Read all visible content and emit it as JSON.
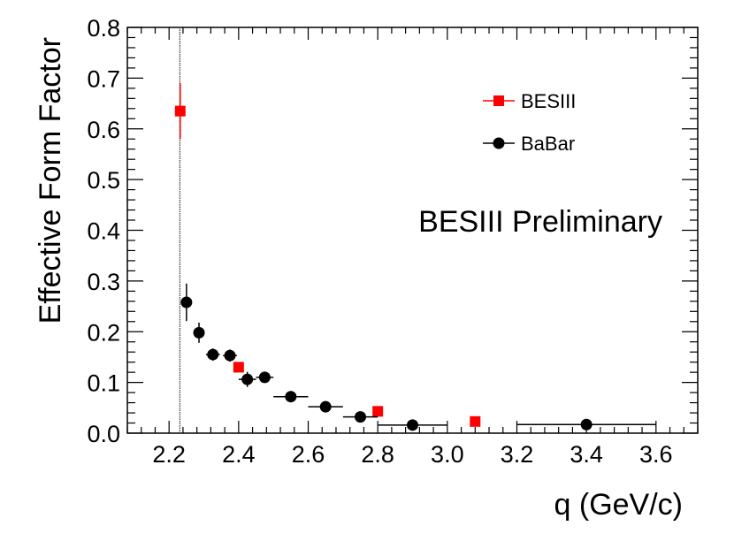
{
  "chart_data": {
    "type": "scatter",
    "title": "",
    "xlabel": "q (GeV/c)",
    "ylabel": "Effective Form Factor",
    "xlim": [
      2.08,
      3.72
    ],
    "ylim": [
      0.0,
      0.8
    ],
    "x_ticks": [
      "2.2",
      "2.4",
      "2.6",
      "2.8",
      "3.0",
      "3.2",
      "3.4",
      "3.6"
    ],
    "x_tick_values": [
      2.2,
      2.4,
      2.6,
      2.8,
      3.0,
      3.2,
      3.4,
      3.6
    ],
    "y_ticks": [
      "0.0",
      "0.1",
      "0.2",
      "0.3",
      "0.4",
      "0.5",
      "0.6",
      "0.7",
      "0.8"
    ],
    "y_tick_values": [
      0.0,
      0.1,
      0.2,
      0.3,
      0.4,
      0.5,
      0.6,
      0.7,
      0.8
    ],
    "threshold_line_x": 2.231,
    "annotation": "BESIII Preliminary",
    "legend_position": "top-right",
    "grid": false,
    "series": [
      {
        "name": "BESIII",
        "marker": "square",
        "color": "#ff0000",
        "points": [
          {
            "x": 2.232,
            "y": 0.635,
            "yerr": 0.055,
            "xerr": 0.0
          },
          {
            "x": 2.4,
            "y": 0.13,
            "yerr": 0.007,
            "xerr": 0.0
          },
          {
            "x": 2.8,
            "y": 0.043,
            "yerr": 0.003,
            "xerr": 0.0
          },
          {
            "x": 3.08,
            "y": 0.023,
            "yerr": 0.003,
            "xerr": 0.0
          }
        ]
      },
      {
        "name": "BaBar",
        "marker": "circle",
        "color": "#000000",
        "points": [
          {
            "x": 2.25,
            "y": 0.258,
            "yerr": 0.037,
            "xerr": 0.012
          },
          {
            "x": 2.286,
            "y": 0.198,
            "yerr": 0.02,
            "xerr": 0.012
          },
          {
            "x": 2.326,
            "y": 0.155,
            "yerr": 0.012,
            "xerr": 0.02
          },
          {
            "x": 2.375,
            "y": 0.153,
            "yerr": 0.012,
            "xerr": 0.02
          },
          {
            "x": 2.425,
            "y": 0.106,
            "yerr": 0.015,
            "xerr": 0.025
          },
          {
            "x": 2.475,
            "y": 0.11,
            "yerr": 0.01,
            "xerr": 0.025
          },
          {
            "x": 2.55,
            "y": 0.072,
            "yerr": 0.006,
            "xerr": 0.05
          },
          {
            "x": 2.65,
            "y": 0.052,
            "yerr": 0.008,
            "xerr": 0.05
          },
          {
            "x": 2.75,
            "y": 0.032,
            "yerr": 0.01,
            "xerr": 0.05
          },
          {
            "x": 2.9,
            "y": 0.016,
            "yerr": 0.006,
            "xerr": 0.1
          },
          {
            "x": 3.4,
            "y": 0.017,
            "yerr": 0.005,
            "xerr": 0.2
          }
        ]
      }
    ]
  }
}
